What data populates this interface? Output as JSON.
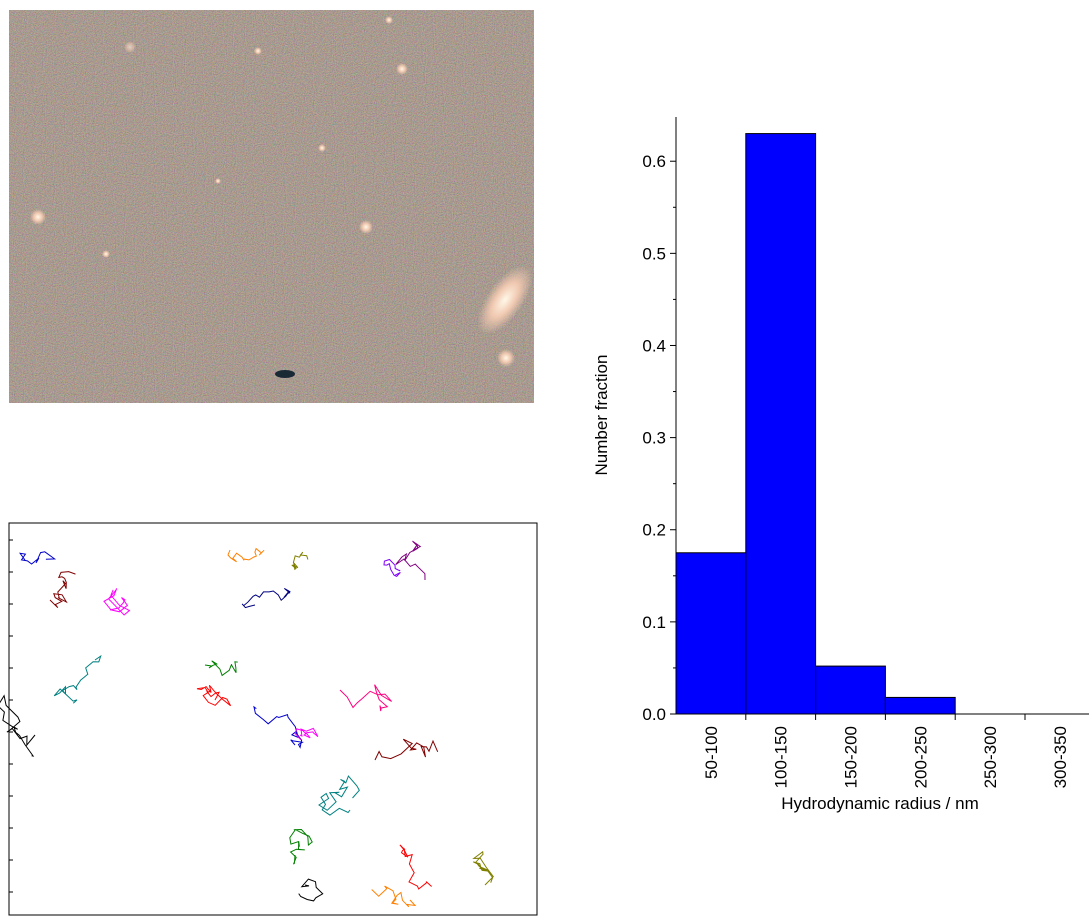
{
  "chart_data": {
    "type": "bar",
    "xlabel": "Hydrodynamic radius / nm",
    "ylabel": "Number fraction",
    "categories": [
      "50-100",
      "100-150",
      "150-200",
      "200-250",
      "250-300",
      "300-350"
    ],
    "values": [
      0.175,
      0.63,
      0.052,
      0.018,
      0,
      0
    ],
    "color": "#0000ff",
    "ylim": [
      0,
      0.648
    ],
    "yticks": [
      {
        "value": 0,
        "label": "0.0"
      },
      0.1,
      0.2,
      0.3,
      0.4,
      0.5,
      0.6
    ]
  }
}
